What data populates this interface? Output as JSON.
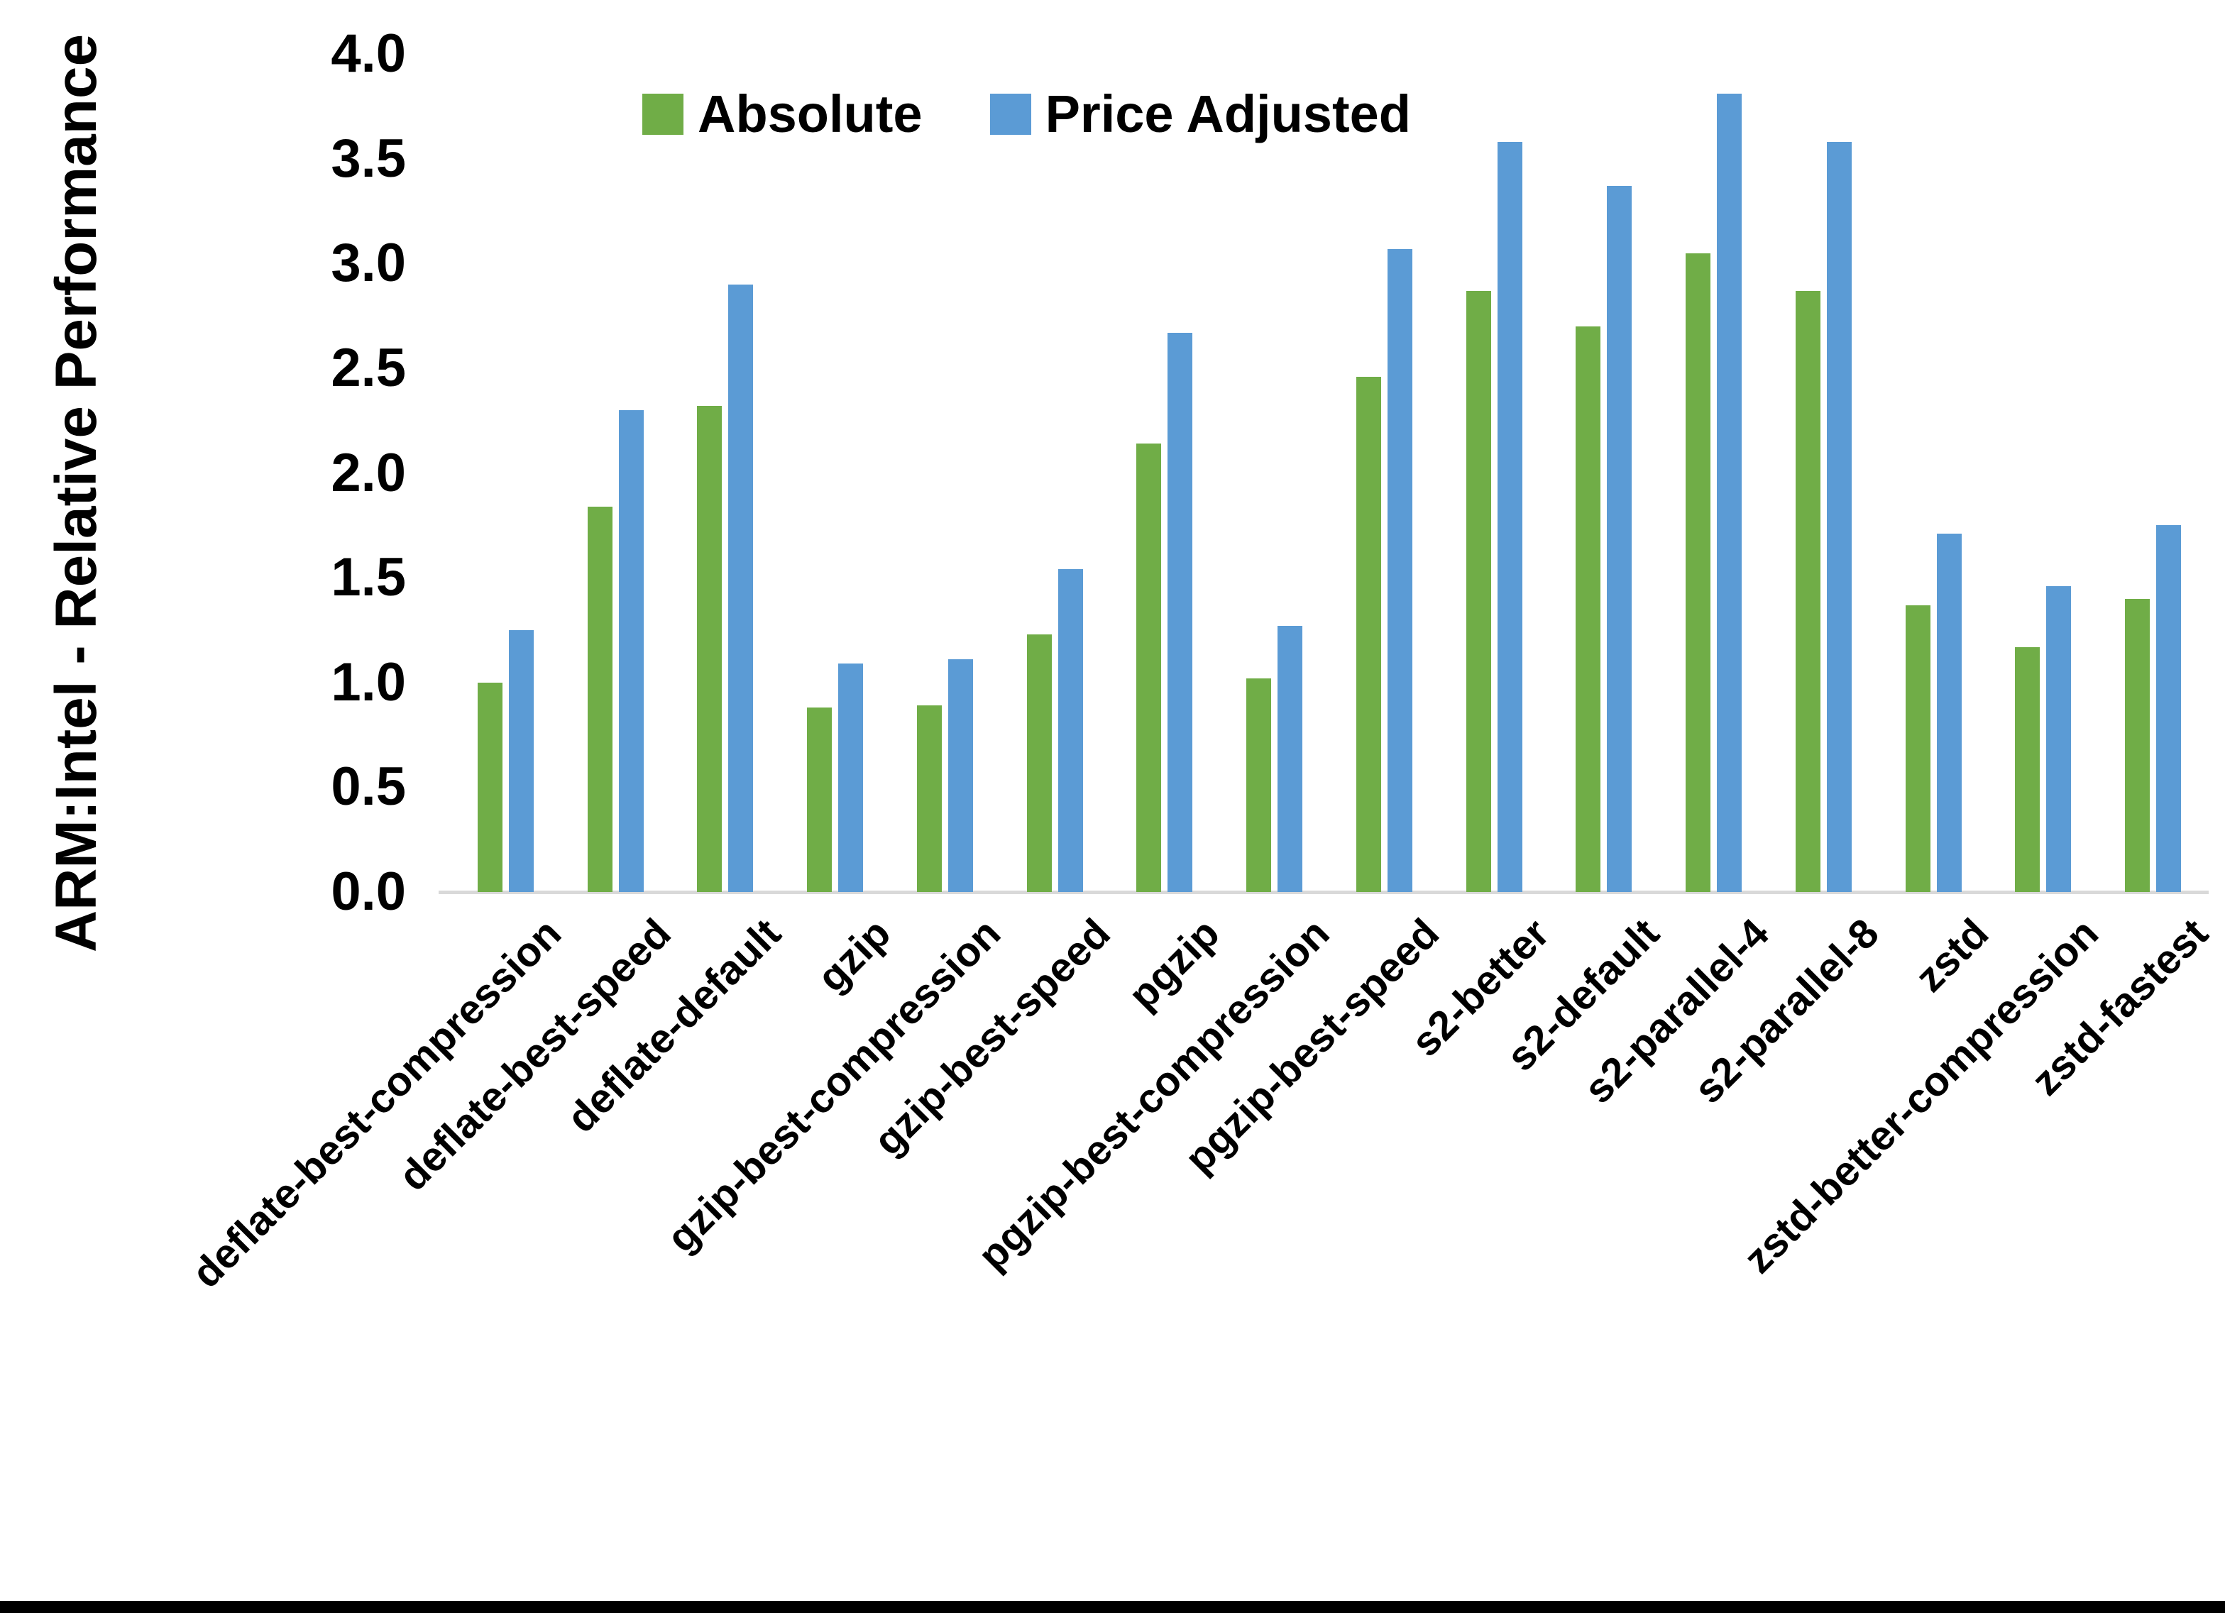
{
  "chart_data": {
    "type": "bar",
    "title": "",
    "xlabel": "",
    "ylabel": "ARM:Intel - Relative Performance",
    "ylim": [
      0,
      4
    ],
    "ytick_step": 0.5,
    "ytick_labels": [
      "0.0",
      "0.5",
      "1.0",
      "1.5",
      "2.0",
      "2.5",
      "3.0",
      "3.5",
      "4.0"
    ],
    "grid": false,
    "legend_position": "top-center",
    "categories": [
      "deflate-best-compression",
      "deflate-best-speed",
      "deflate-default",
      "gzip",
      "gzip-best-compression",
      "gzip-best-speed",
      "pgzip",
      "pgzip-best-compression",
      "pgzip-best-speed",
      "s2-better",
      "s2-default",
      "s2-parallel-4",
      "s2-parallel-8",
      "zstd",
      "zstd-better-compression",
      "zstd-fastest"
    ],
    "series": [
      {
        "name": "Absolute",
        "color": "#70AD47",
        "values": [
          1.0,
          1.84,
          2.32,
          0.88,
          0.89,
          1.23,
          2.14,
          1.02,
          2.46,
          2.87,
          2.7,
          3.05,
          2.87,
          1.37,
          1.17,
          1.4
        ]
      },
      {
        "name": "Price Adjusted",
        "color": "#5B9BD5",
        "values": [
          1.25,
          2.3,
          2.9,
          1.09,
          1.11,
          1.54,
          2.67,
          1.27,
          3.07,
          3.58,
          3.37,
          3.81,
          3.58,
          1.71,
          1.46,
          1.75
        ]
      }
    ]
  },
  "colors": {
    "background": "#FFFFFF",
    "text": "#000000",
    "axis_line": "#D9D9D9",
    "bottom_bar": "#000000"
  }
}
